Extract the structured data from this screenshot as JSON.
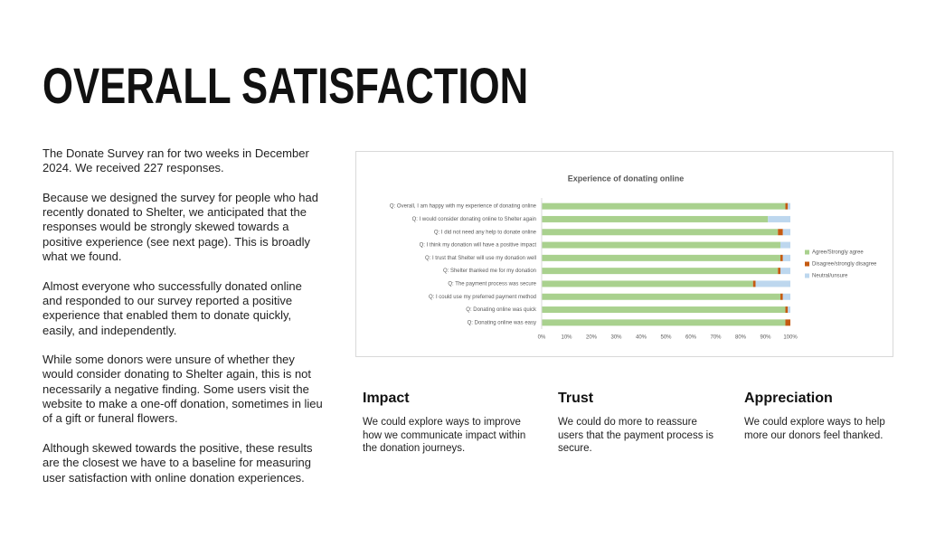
{
  "title": "OVERALL SATISFACTION",
  "paragraphs": [
    "The Donate Survey ran for two weeks in December 2024. We received 227 responses.",
    "Because we designed the survey for people who had recently donated to Shelter, we anticipated that the responses would be strongly skewed towards a positive experience (see next page). This is broadly what we found.",
    "Almost everyone who successfully donated online and responded to our survey reported a positive experience that enabled them to donate quickly, easily, and independently.",
    "While some donors were unsure of whether they would consider donating to Shelter again, this is not necessarily a negative finding. Some users visit the website to make a one-off donation, sometimes in lieu of a gift or funeral flowers.",
    "Although skewed towards the positive, these results are the closest we have to a baseline for measuring user satisfaction with online donation experiences."
  ],
  "chart_data": {
    "type": "stacked-bar-horizontal",
    "title": "Experience of donating online",
    "categories": [
      "Q: Overall, I am happy with my experience of donating online",
      "Q: I would consider donating online to Shelter again",
      "Q: I did not need any help to donate online",
      "Q: I think my donation will have a positive impact",
      "Q: I trust that Shelter will use my donation well",
      "Q: Shelter thanked me for my donation",
      "Q: The payment process was secure",
      "Q: I could use my preferred payment method",
      "Q: Donating online was quick",
      "Q: Donating online was easy"
    ],
    "series": [
      {
        "name": "Agree/Strongly agree",
        "color": "#a9d18e",
        "values": [
          98,
          91,
          95,
          96,
          96,
          95,
          85,
          96,
          98,
          98
        ]
      },
      {
        "name": "Disagree/strongly disagree",
        "color": "#c55a11",
        "values": [
          1,
          0,
          2,
          0,
          1,
          1,
          1,
          1,
          1,
          2
        ]
      },
      {
        "name": "Neutral/unsure",
        "color": "#bdd7ee",
        "values": [
          1,
          9,
          3,
          4,
          3,
          4,
          14,
          3,
          1,
          0
        ]
      }
    ],
    "xlim": [
      0,
      100
    ],
    "xticks": [
      {
        "value": 0,
        "label": "0%"
      },
      {
        "value": 10,
        "label": "10%"
      },
      {
        "value": 20,
        "label": "20%"
      },
      {
        "value": 30,
        "label": "30%"
      },
      {
        "value": 40,
        "label": "40%"
      },
      {
        "value": 50,
        "label": "50%"
      },
      {
        "value": 60,
        "label": "60%"
      },
      {
        "value": 70,
        "label": "70%"
      },
      {
        "value": 80,
        "label": "80%"
      },
      {
        "value": 90,
        "label": "90%"
      },
      {
        "value": 100,
        "label": "100%"
      }
    ],
    "legend": "right"
  },
  "cards": [
    {
      "title": "Impact",
      "text": "We could explore ways to improve how we communicate impact within the donation journeys."
    },
    {
      "title": "Trust",
      "text": "We could do more to reassure users that the payment process is secure."
    },
    {
      "title": "Appreciation",
      "text": "We could explore ways to help more our donors feel thanked."
    }
  ]
}
